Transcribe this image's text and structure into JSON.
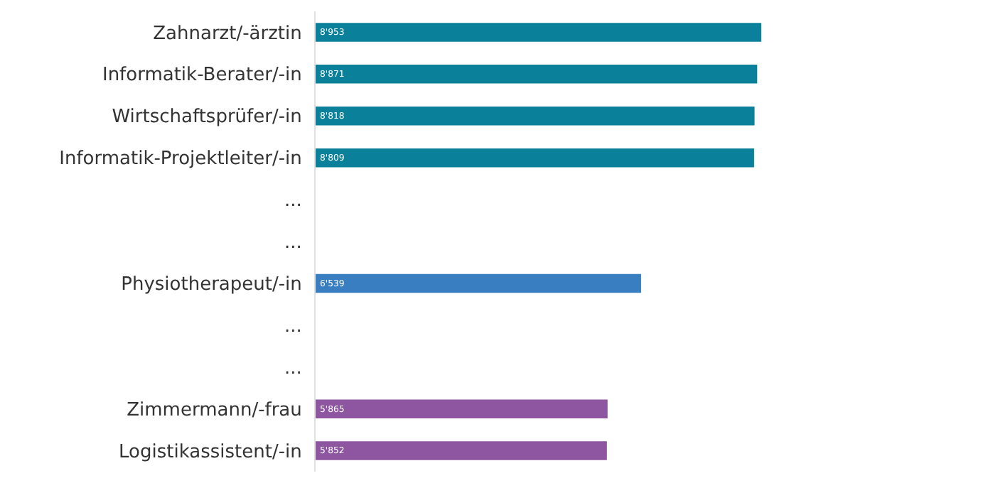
{
  "chart_data": {
    "type": "bar",
    "orientation": "horizontal",
    "categories": [
      "Zahnarzt/-ärztin",
      "Informatik-Berater/-in",
      "Wirtschaftsprüfer/-in",
      "Informatik-Projektleiter/-in",
      "...",
      "...",
      "Physiotherapeut/-in",
      "...",
      "...",
      "Zimmermann/-frau",
      "Logistikassistent/-in"
    ],
    "values": [
      8953,
      8871,
      8818,
      8809,
      null,
      null,
      6539,
      null,
      null,
      5865,
      5852
    ],
    "value_labels": [
      "8'953",
      "8'871",
      "8'818",
      "8'809",
      null,
      null,
      "6'539",
      null,
      null,
      "5'865",
      "5'852"
    ],
    "colors": [
      "#0a809a",
      "#0a809a",
      "#0a809a",
      "#0a809a",
      "#0a809a",
      "#0a809a",
      "#3a7ec2",
      "#8e55a0",
      "#8e55a0",
      "#8e55a0",
      "#8e55a0"
    ],
    "legend": false
  }
}
